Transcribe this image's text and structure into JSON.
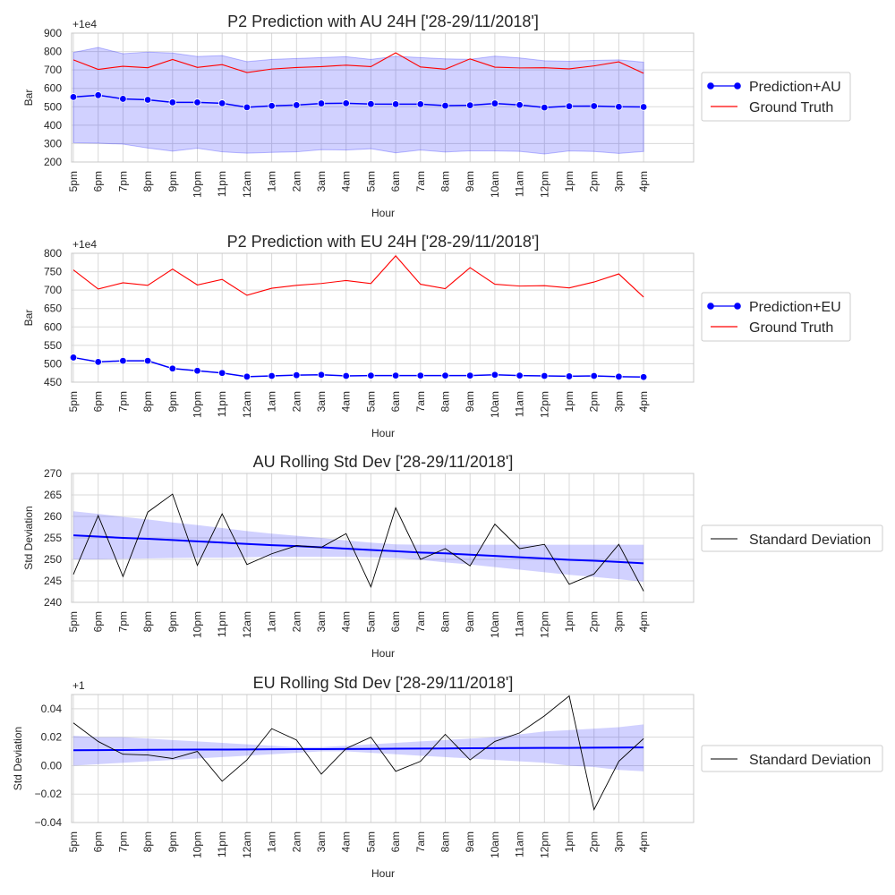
{
  "chart_data": [
    {
      "type": "line",
      "title": "P2 Prediction with AU 24H ['28-29/11/2018']",
      "xlabel": "Hour",
      "ylabel": "Bar",
      "offset_label": "+1e4",
      "categories": [
        "5pm",
        "6pm",
        "7pm",
        "8pm",
        "9pm",
        "10pm",
        "11pm",
        "12am",
        "1am",
        "2am",
        "3am",
        "4am",
        "5am",
        "6am",
        "7am",
        "8am",
        "9am",
        "10am",
        "11am",
        "12pm",
        "1pm",
        "2pm",
        "3pm",
        "4pm"
      ],
      "yticks": [
        "200",
        "300",
        "400",
        "500",
        "600",
        "700",
        "800",
        "900"
      ],
      "ylim": [
        200,
        900
      ],
      "grid": true,
      "legend_position": "right",
      "series": [
        {
          "name": "Prediction+AU",
          "color": "#0000ff",
          "marker": "circle",
          "values": [
            553,
            563,
            543,
            538,
            524,
            524,
            519,
            497,
            505,
            509,
            518,
            519,
            515,
            514,
            514,
            506,
            508,
            518,
            510,
            496,
            503,
            504,
            500,
            499
          ]
        },
        {
          "name": "Ground Truth",
          "color": "#ff0000",
          "values": [
            755,
            703,
            720,
            712,
            757,
            714,
            729,
            686,
            705,
            713,
            718,
            726,
            718,
            793,
            716,
            704,
            760,
            715,
            711,
            712,
            706,
            722,
            744,
            682
          ]
        }
      ],
      "band": {
        "color": "#0000ff",
        "upper": [
          795,
          822,
          788,
          797,
          792,
          773,
          778,
          745,
          757,
          762,
          767,
          772,
          757,
          774,
          767,
          760,
          758,
          775,
          765,
          750,
          747,
          752,
          755,
          742
        ],
        "lower": [
          305,
          302,
          297,
          276,
          259,
          275,
          255,
          248,
          252,
          255,
          267,
          265,
          272,
          250,
          265,
          254,
          261,
          260,
          258,
          244,
          260,
          257,
          247,
          257
        ]
      }
    },
    {
      "type": "line",
      "title": "P2 Prediction with EU 24H ['28-29/11/2018']",
      "xlabel": "Hour",
      "ylabel": "Bar",
      "offset_label": "+1e4",
      "categories": [
        "5pm",
        "6pm",
        "7pm",
        "8pm",
        "9pm",
        "10pm",
        "11pm",
        "12am",
        "1am",
        "2am",
        "3am",
        "4am",
        "5am",
        "6am",
        "7am",
        "8am",
        "9am",
        "10am",
        "11am",
        "12pm",
        "1pm",
        "2pm",
        "3pm",
        "4pm"
      ],
      "yticks": [
        "450",
        "500",
        "550",
        "600",
        "650",
        "700",
        "750",
        "800"
      ],
      "ylim": [
        450,
        800
      ],
      "grid": true,
      "legend_position": "right",
      "series": [
        {
          "name": "Prediction+EU",
          "color": "#0000ff",
          "marker": "circle",
          "values": [
            517,
            505,
            508,
            508,
            487,
            481,
            475,
            465,
            467,
            469,
            470,
            467,
            468,
            468,
            468,
            468,
            468,
            470,
            468,
            467,
            466,
            467,
            465,
            464
          ]
        },
        {
          "name": "Ground Truth",
          "color": "#ff0000",
          "values": [
            755,
            703,
            720,
            713,
            757,
            714,
            729,
            686,
            705,
            713,
            718,
            726,
            718,
            793,
            716,
            704,
            761,
            716,
            711,
            712,
            706,
            722,
            744,
            681
          ]
        }
      ]
    },
    {
      "type": "line",
      "title": "AU Rolling Std Dev ['28-29/11/2018']",
      "xlabel": "Hour",
      "ylabel": "Std Deviation",
      "categories": [
        "5pm",
        "6pm",
        "7pm",
        "8pm",
        "9pm",
        "10pm",
        "11pm",
        "12am",
        "1am",
        "2am",
        "3am",
        "4am",
        "5am",
        "6am",
        "7am",
        "8am",
        "9am",
        "10am",
        "11am",
        "12pm",
        "1pm",
        "2pm",
        "3pm",
        "4pm"
      ],
      "yticks": [
        "240",
        "245",
        "250",
        "255",
        "260",
        "265",
        "270"
      ],
      "ylim": [
        240,
        270
      ],
      "grid": true,
      "legend_position": "right",
      "series": [
        {
          "name": "Standard Deviation",
          "color": "#000000",
          "values": [
            246.5,
            260.2,
            246.0,
            261.0,
            265.2,
            248.6,
            260.6,
            248.8,
            251.3,
            253.2,
            252.8,
            256.0,
            243.6,
            262.0,
            250.0,
            252.5,
            248.5,
            258.2,
            252.5,
            253.5,
            244.2,
            246.6,
            253.5,
            242.6
          ]
        }
      ],
      "trend": {
        "color": "#0000ff",
        "values": [
          255.6,
          255.3,
          255.0,
          254.8,
          254.5,
          254.2,
          253.9,
          253.6,
          253.3,
          253.1,
          252.8,
          252.5,
          252.2,
          251.9,
          251.6,
          251.4,
          251.1,
          250.8,
          250.5,
          250.2,
          249.9,
          249.7,
          249.4,
          249.1
        ]
      },
      "band": {
        "color": "#0000ff",
        "upper": [
          261.2,
          260.6,
          259.9,
          259.3,
          258.6,
          258.0,
          257.3,
          256.6,
          256.0,
          255.5,
          255.0,
          254.4,
          253.9,
          253.5,
          253.4,
          253.4,
          253.4,
          253.4,
          253.4,
          253.4,
          253.4,
          253.4,
          253.4,
          253.4
        ],
        "lower": [
          250.0,
          250.0,
          250.1,
          250.2,
          250.3,
          250.4,
          250.4,
          250.5,
          250.6,
          250.6,
          250.6,
          250.6,
          250.5,
          250.3,
          249.9,
          249.3,
          248.8,
          248.2,
          247.6,
          247.0,
          246.4,
          245.9,
          245.4,
          244.8
        ]
      }
    },
    {
      "type": "line",
      "title": "EU Rolling Std Dev ['28-29/11/2018']",
      "xlabel": "Hour",
      "ylabel": "Std Deviation",
      "offset_label": "+1",
      "categories": [
        "5pm",
        "6pm",
        "7pm",
        "8pm",
        "9pm",
        "10pm",
        "11pm",
        "12am",
        "1am",
        "2am",
        "3am",
        "4am",
        "5am",
        "6am",
        "7am",
        "8am",
        "9am",
        "10am",
        "11am",
        "12pm",
        "1pm",
        "2pm",
        "3pm",
        "4pm"
      ],
      "yticks": [
        "−0.04",
        "−0.02",
        "0.00",
        "0.02",
        "0.04"
      ],
      "ylim": [
        -0.04,
        0.05
      ],
      "grid": true,
      "legend_position": "right",
      "series": [
        {
          "name": "Standard Deviation",
          "color": "#000000",
          "values": [
            0.03,
            0.017,
            0.008,
            0.0075,
            0.005,
            0.01,
            -0.011,
            0.004,
            0.026,
            0.018,
            -0.006,
            0.012,
            0.02,
            -0.004,
            0.003,
            0.022,
            0.004,
            0.017,
            0.023,
            0.035,
            0.049,
            -0.031,
            0.003,
            0.019
          ]
        }
      ],
      "trend": {
        "color": "#0000ff",
        "values": [
          0.0108,
          0.0109,
          0.011,
          0.0111,
          0.0112,
          0.0113,
          0.0113,
          0.0114,
          0.0115,
          0.0116,
          0.0116,
          0.0117,
          0.0118,
          0.0119,
          0.012,
          0.0121,
          0.0122,
          0.0123,
          0.0124,
          0.0125,
          0.0125,
          0.0126,
          0.0127,
          0.0128
        ]
      },
      "band": {
        "color": "#0000ff",
        "upper": [
          0.021,
          0.02,
          0.02,
          0.019,
          0.018,
          0.017,
          0.016,
          0.015,
          0.014,
          0.013,
          0.013,
          0.014,
          0.015,
          0.016,
          0.017,
          0.018,
          0.019,
          0.02,
          0.022,
          0.024,
          0.025,
          0.026,
          0.027,
          0.029
        ],
        "lower": [
          -0.0,
          0.001,
          0.002,
          0.003,
          0.004,
          0.005,
          0.006,
          0.007,
          0.008,
          0.009,
          0.01,
          0.01,
          0.009,
          0.008,
          0.007,
          0.006,
          0.005,
          0.004,
          0.003,
          0.002,
          0.0,
          -0.001,
          -0.003,
          -0.004
        ]
      }
    }
  ]
}
